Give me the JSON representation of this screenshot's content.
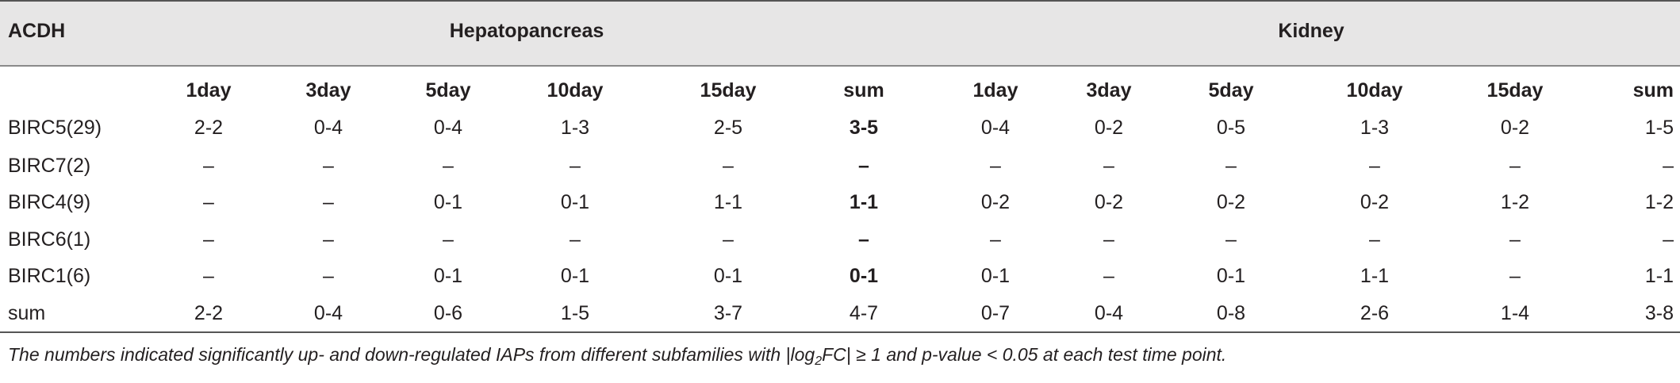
{
  "table": {
    "corner_label": "ACDH",
    "groups": [
      "Hepatopancreas",
      "Kidney"
    ],
    "time_headers": [
      "1day",
      "3day",
      "5day",
      "10day",
      "15day",
      "sum",
      "1day",
      "3day",
      "5day",
      "10day",
      "15day",
      "sum"
    ],
    "rows": [
      {
        "label": "BIRC5(29)",
        "cells": [
          "2-2",
          "0-4",
          "0-4",
          "1-3",
          "2-5",
          "3-5",
          "0-4",
          "0-2",
          "0-5",
          "1-3",
          "0-2",
          "1-5"
        ]
      },
      {
        "label": "BIRC7(2)",
        "cells": [
          "–",
          "–",
          "–",
          "–",
          "–",
          "–",
          "–",
          "–",
          "–",
          "–",
          "–",
          "–"
        ]
      },
      {
        "label": "BIRC4(9)",
        "cells": [
          "–",
          "–",
          "0-1",
          "0-1",
          "1-1",
          "1-1",
          "0-2",
          "0-2",
          "0-2",
          "0-2",
          "1-2",
          "1-2"
        ]
      },
      {
        "label": "BIRC6(1)",
        "cells": [
          "–",
          "–",
          "–",
          "–",
          "–",
          "–",
          "–",
          "–",
          "–",
          "–",
          "–",
          "–"
        ]
      },
      {
        "label": "BIRC1(6)",
        "cells": [
          "–",
          "–",
          "0-1",
          "0-1",
          "0-1",
          "0-1",
          "0-1",
          "–",
          "0-1",
          "1-1",
          "–",
          "1-1"
        ]
      },
      {
        "label": "sum",
        "cells": [
          "2-2",
          "0-4",
          "0-6",
          "1-5",
          "3-7",
          "4-7",
          "0-7",
          "0-4",
          "0-8",
          "2-6",
          "1-4",
          "3-8"
        ]
      }
    ]
  },
  "footnote": {
    "before": "The numbers indicated significantly up- and down-regulated IAPs from different subfamilies with |log",
    "subscript": "2",
    "after": "FC| ≥ 1 and p-value < 0.05 at each test time point."
  }
}
